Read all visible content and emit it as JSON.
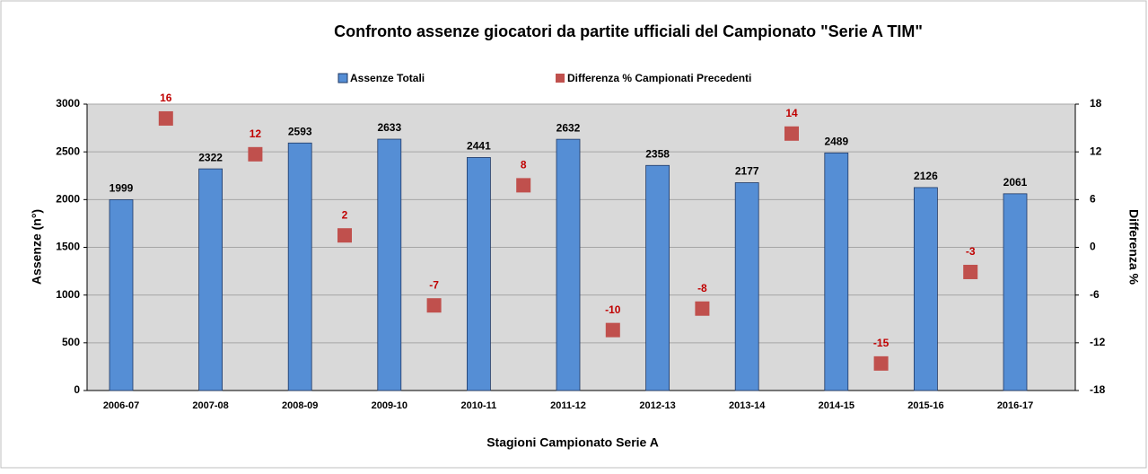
{
  "chart_data": {
    "type": "bar",
    "title": "Confronto assenze giocatori da partite ufficiali del Campionato \"Serie A TIM\"",
    "x_label": "Stagioni Campionato Serie A",
    "y_label": "Assenze (n°)",
    "y2_label": "Differenza %",
    "categories": [
      "2006-07",
      "2007-08",
      "2008-09",
      "2009-10",
      "2010-11",
      "2011-12",
      "2012-13",
      "2013-14",
      "2014-15",
      "2015-16",
      "2016-17"
    ],
    "series": [
      {
        "name": "Assenze Totali",
        "color": "#558ed5",
        "values": [
          1999,
          2322,
          2593,
          2633,
          2441,
          2632,
          2358,
          2177,
          2489,
          2126,
          2061
        ]
      },
      {
        "name": "Differenza % Campionati Precedenti",
        "color": "#c0504d",
        "axis": "y2",
        "values": [
          null,
          16.2,
          11.7,
          1.5,
          -7.3,
          7.8,
          -10.4,
          -7.7,
          14.3,
          -14.6,
          -3.1
        ],
        "value_labels": [
          null,
          "16",
          "12",
          "2",
          "-7",
          "8",
          "-10",
          "-8",
          "14",
          "-15",
          "-3"
        ]
      }
    ],
    "ylim": [
      0,
      3000
    ],
    "yticks": [
      0,
      500,
      1000,
      1500,
      2000,
      2500,
      3000
    ],
    "y2lim": [
      -18,
      18
    ],
    "y2ticks": [
      -18,
      -12,
      -6,
      0,
      6,
      12,
      18
    ],
    "grid": true
  }
}
